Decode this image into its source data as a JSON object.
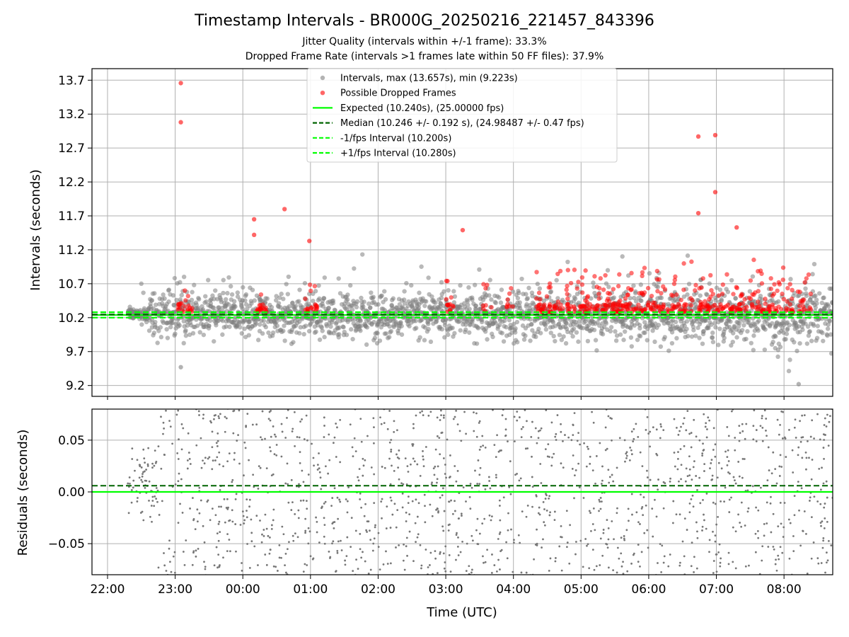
{
  "chart_data": [
    {
      "type": "scatter",
      "title": "Timestamp Intervals - BR000G_20250216_221457_843396",
      "subtitle_1": "Jitter Quality (intervals within +/-1 frame): 33.3%",
      "subtitle_2": "Dropped Frame Rate (intervals >1 frames late within 50 FF files): 37.9%",
      "ylabel": "Intervals (seconds)",
      "ylim": [
        9.04,
        13.87
      ],
      "xlim_hours": [
        21.77,
        32.72
      ],
      "yticks": [
        "9.2",
        "9.7",
        "10.2",
        "10.7",
        "11.2",
        "11.7",
        "12.2",
        "12.7",
        "13.2",
        "13.7"
      ],
      "ytick_values": [
        9.2,
        9.7,
        10.2,
        10.7,
        11.2,
        11.7,
        12.2,
        12.7,
        13.2,
        13.7
      ],
      "grid": true,
      "legend_position": "top-center",
      "legend": [
        {
          "label": "Intervals, max (13.657s), min (9.223s)",
          "kind": "marker",
          "color": "#808080"
        },
        {
          "label": "Possible Dropped Frames",
          "kind": "marker",
          "color": "#ff0000"
        },
        {
          "label": "Expected (10.240s), (25.00000 fps)",
          "kind": "solid",
          "color": "#00ff00"
        },
        {
          "label": "Median (10.246 +/- 0.192 s), (24.98487 +/- 0.47 fps)",
          "kind": "dashed",
          "color": "#006400"
        },
        {
          "label": "-1/fps Interval (10.200s)",
          "kind": "dashed",
          "color": "#00ff00"
        },
        {
          "label": "+1/fps Interval (10.280s)",
          "kind": "dashed",
          "color": "#00ff00"
        }
      ],
      "lines": {
        "expected": 10.24,
        "median": 10.246,
        "minus_1_fps": 10.2,
        "plus_1_fps": 10.28
      },
      "series": [
        {
          "name": "Intervals",
          "color": "#808080",
          "values_range": [
            9.223,
            13.657
          ]
        },
        {
          "name": "Possible Dropped Frames",
          "color": "#ff0000"
        }
      ],
      "notable_points": [
        {
          "time": "23:05",
          "value": 13.657
        },
        {
          "time": "23:05",
          "value": 13.08
        },
        {
          "time": "23:05",
          "value": 9.47
        },
        {
          "time": "00:10",
          "value": 11.42
        },
        {
          "time": "00:10",
          "value": 11.65
        },
        {
          "time": "00:37",
          "value": 11.8
        },
        {
          "time": "00:59",
          "value": 11.33
        },
        {
          "time": "03:15",
          "value": 11.49
        },
        {
          "time": "06:44",
          "value": 12.87
        },
        {
          "time": "06:44",
          "value": 11.74
        },
        {
          "time": "06:59",
          "value": 12.89
        },
        {
          "time": "06:59",
          "value": 12.05
        },
        {
          "time": "07:18",
          "value": 11.53
        },
        {
          "time": "08:13",
          "value": 9.22
        }
      ]
    },
    {
      "type": "scatter",
      "ylabel": "Residuals (seconds)",
      "xlabel": "Time (UTC)",
      "ylim": [
        -0.08,
        0.08
      ],
      "yticks": [
        "−0.05",
        "0.00",
        "0.05"
      ],
      "ytick_values": [
        -0.05,
        0.0,
        0.05
      ],
      "xticks": [
        "22:00",
        "23:00",
        "00:00",
        "01:00",
        "02:00",
        "03:00",
        "04:00",
        "05:00",
        "06:00",
        "07:00",
        "08:00"
      ],
      "xtick_values": [
        22,
        23,
        24,
        25,
        26,
        27,
        28,
        29,
        30,
        31,
        32
      ],
      "grid": true,
      "lines": {
        "zero": 0.0,
        "median_offset": 0.006
      },
      "series": [
        {
          "name": "Residuals",
          "color": "#777777",
          "values_range": [
            -0.08,
            0.08
          ]
        }
      ]
    }
  ]
}
